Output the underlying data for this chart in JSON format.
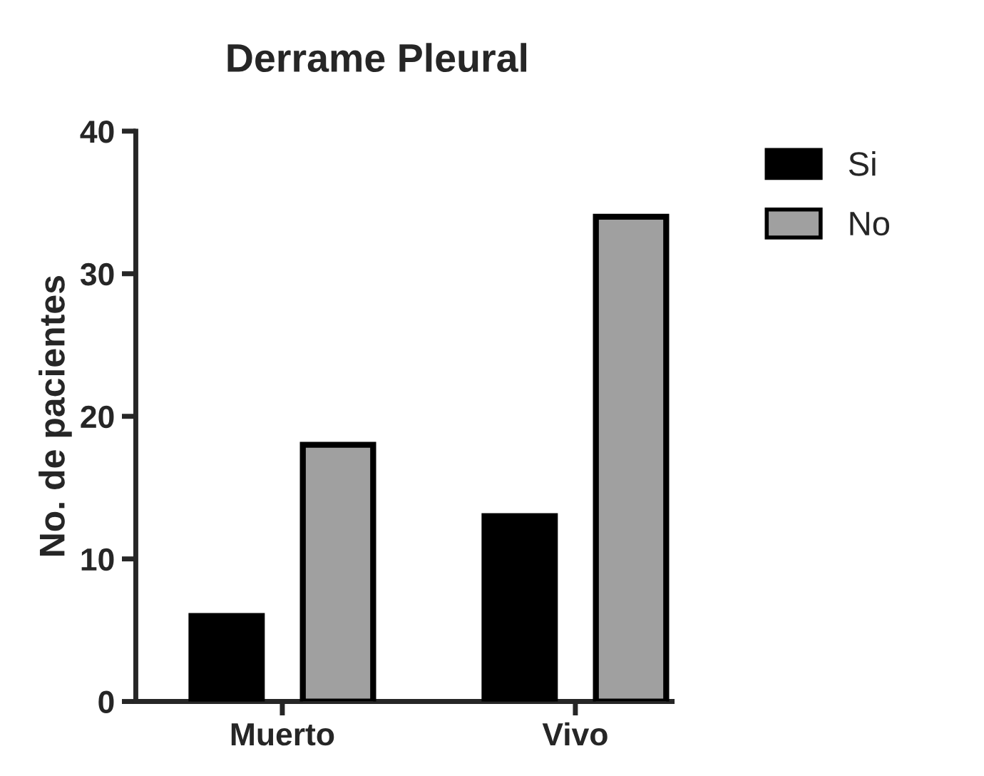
{
  "chart_data": {
    "type": "bar",
    "title": "Derrame Pleural",
    "ylabel": "No. de pacientes",
    "categories": [
      "Muerto",
      "Vivo"
    ],
    "series": [
      {
        "name": "Si",
        "color": "#000000",
        "values": [
          6,
          13
        ]
      },
      {
        "name": "No",
        "color": "#a0a0a0",
        "values": [
          18,
          34
        ]
      }
    ],
    "ylim": [
      0,
      40
    ],
    "yticks": [
      0,
      10,
      20,
      30,
      40
    ],
    "grid": false,
    "legend": "top right"
  }
}
